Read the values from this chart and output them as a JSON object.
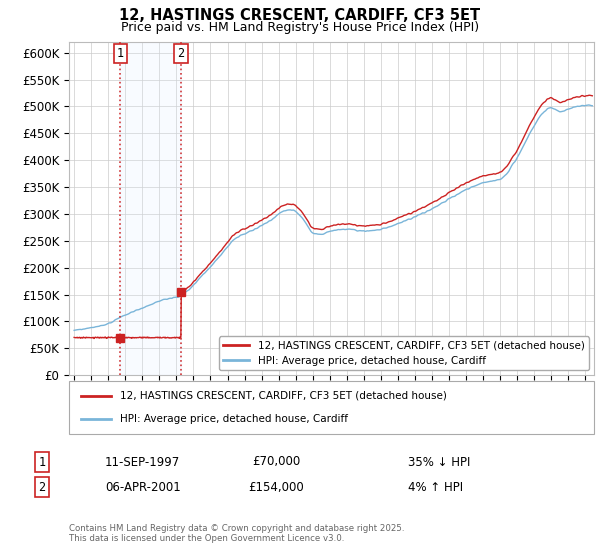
{
  "title": "12, HASTINGS CRESCENT, CARDIFF, CF3 5ET",
  "subtitle": "Price paid vs. HM Land Registry's House Price Index (HPI)",
  "ylim": [
    0,
    620000
  ],
  "yticks": [
    0,
    50000,
    100000,
    150000,
    200000,
    250000,
    300000,
    350000,
    400000,
    450000,
    500000,
    550000,
    600000
  ],
  "ytick_labels": [
    "£0",
    "£50K",
    "£100K",
    "£150K",
    "£200K",
    "£250K",
    "£300K",
    "£350K",
    "£400K",
    "£450K",
    "£500K",
    "£550K",
    "£600K"
  ],
  "hpi_color": "#7ab5d9",
  "price_color": "#cc2222",
  "marker_color": "#cc2222",
  "annotation_box_color": "#cc2222",
  "shade_color": "#ddeeff",
  "sale1_x": 1997.7,
  "sale1_price": 70000,
  "sale2_x": 2001.27,
  "sale2_price": 154000,
  "sale1_date": "11-SEP-1997",
  "sale1_hpi_rel": "35% ↓ HPI",
  "sale2_date": "06-APR-2001",
  "sale2_price_str": "£154,000",
  "sale1_price_str": "£70,000",
  "sale2_hpi_rel": "4% ↑ HPI",
  "legend_label1": "12, HASTINGS CRESCENT, CARDIFF, CF3 5ET (detached house)",
  "legend_label2": "HPI: Average price, detached house, Cardiff",
  "footer": "Contains HM Land Registry data © Crown copyright and database right 2025.\nThis data is licensed under the Open Government Licence v3.0.",
  "background_color": "#ffffff",
  "grid_color": "#cccccc",
  "xlim_left": 1994.7,
  "xlim_right": 2025.5
}
